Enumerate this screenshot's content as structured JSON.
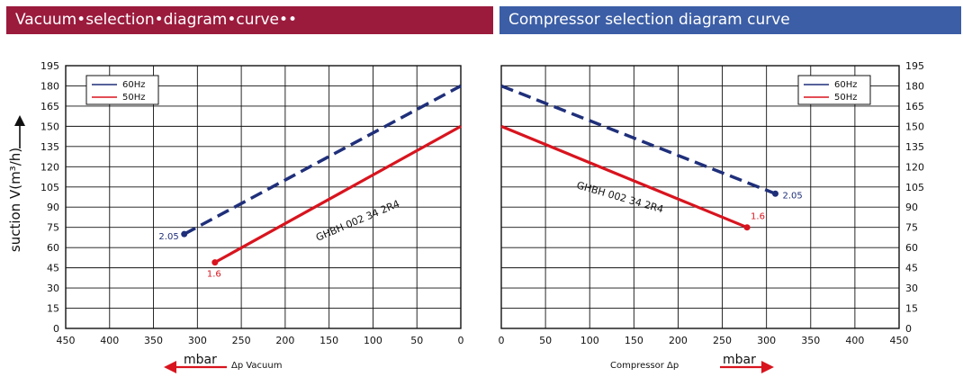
{
  "banners": {
    "vacuum": "Vacuum•selection•diagram•curve••",
    "compressor": "Compressor selection diagram curve"
  },
  "colors": {
    "hz60": "#1f2f7a",
    "hz50": "#d8141e",
    "vacuum_banner": "#9b1b3d",
    "compressor_banner": "#3c5ea6",
    "label_2_05": "#1f2f7a",
    "label_1_6": "#d8141e"
  },
  "ylabel": "suction V(m³/h)",
  "chart_data": [
    {
      "type": "line",
      "title": "Vacuum•selection•diagram•curve••",
      "xlabel": "Δp Vacuum",
      "xunit": "mbar",
      "x_reversed": true,
      "xlim": [
        450,
        0
      ],
      "ylim": [
        0,
        195
      ],
      "xticks": [
        450,
        400,
        350,
        300,
        250,
        200,
        150,
        100,
        50,
        0
      ],
      "yticks": [
        0,
        15,
        30,
        45,
        60,
        75,
        90,
        105,
        120,
        135,
        150,
        165,
        180,
        195
      ],
      "grid": true,
      "legend": "top-left",
      "series": [
        {
          "name": "60Hz",
          "style": "dashed",
          "x": [
            315,
            0
          ],
          "y": [
            70,
            180
          ],
          "end_label": "2.05"
        },
        {
          "name": "50Hz",
          "style": "solid",
          "x": [
            280,
            0
          ],
          "y": [
            49,
            150
          ],
          "end_label": "1.6"
        }
      ],
      "annotation": "GHBH 002 34 2R4"
    },
    {
      "type": "line",
      "title": "Compressor selection diagram curve",
      "xlabel": "Compressor Δp",
      "xunit": "mbar",
      "x_reversed": false,
      "xlim": [
        0,
        450
      ],
      "ylim": [
        0,
        195
      ],
      "xticks": [
        0,
        50,
        100,
        150,
        200,
        250,
        300,
        350,
        400,
        450
      ],
      "yticks": [
        0,
        15,
        30,
        45,
        60,
        75,
        90,
        105,
        120,
        135,
        150,
        165,
        180,
        195
      ],
      "grid": true,
      "legend": "top-right",
      "series": [
        {
          "name": "60Hz",
          "style": "dashed",
          "x": [
            0,
            310
          ],
          "y": [
            180,
            100
          ],
          "end_label": "2.05"
        },
        {
          "name": "50Hz",
          "style": "solid",
          "x": [
            0,
            278
          ],
          "y": [
            150,
            75
          ],
          "end_label": "1.6"
        }
      ],
      "annotation": "GHBH 002 34 2R4"
    }
  ]
}
